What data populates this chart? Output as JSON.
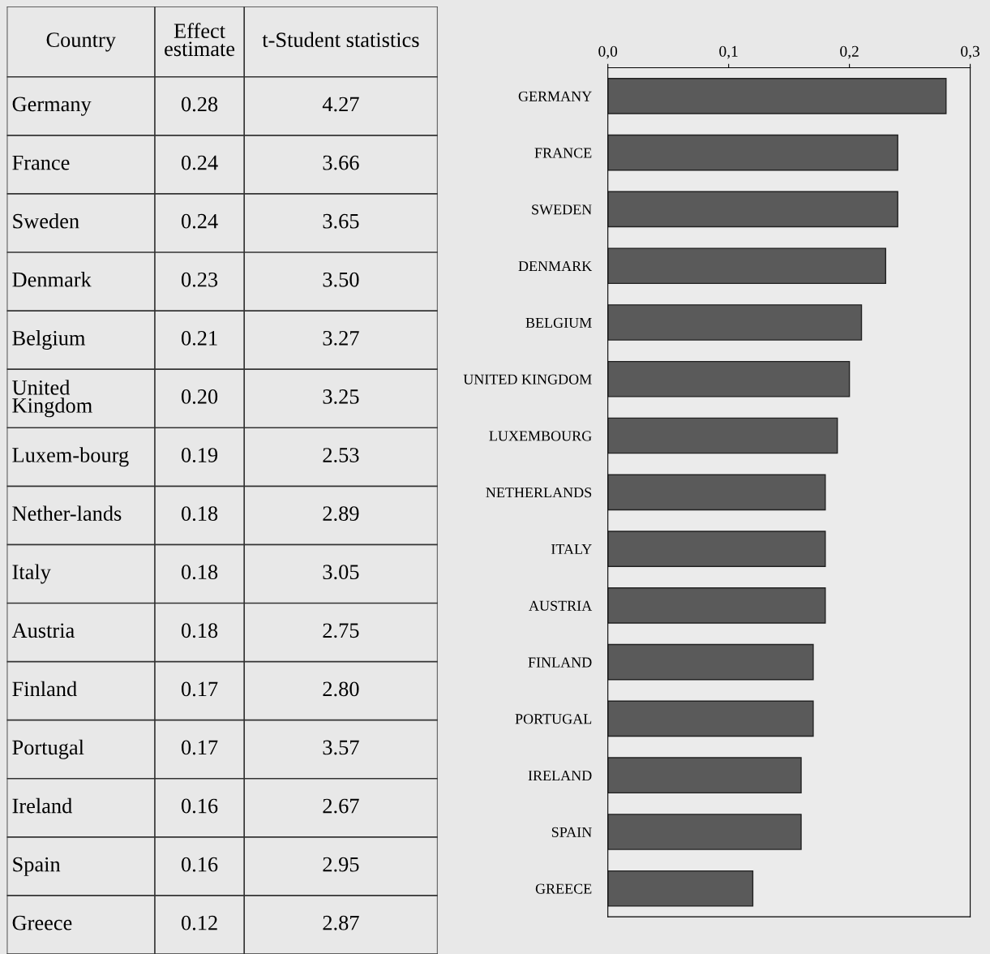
{
  "chart_data": [
    {
      "type": "other",
      "xlabel": "Country",
      "data_labels": true,
      "categories": [
        "Germany",
        "France",
        "Sweden",
        "Denmark",
        "Belgium",
        "United\nKingdom",
        "Luxem-bourg",
        "Nether-lands",
        "Italy",
        "Austria",
        "Finland",
        "Portugal",
        "Ireland",
        "Spain",
        "Greece"
      ],
      "series": [
        {
          "name": "Effect\nestimate",
          "values": [
            0.28,
            0.24,
            0.24,
            0.23,
            0.21,
            0.2,
            0.19,
            0.18,
            0.18,
            0.18,
            0.17,
            0.17,
            0.16,
            0.16,
            0.12
          ],
          "value_labels": [
            "0.28",
            "0.24",
            "0.24",
            "0.23",
            "0.21",
            "0.20",
            "0.19",
            "0.18",
            "0.18",
            "0.18",
            "0.17",
            "0.17",
            "0.16",
            "0.16",
            "0.12"
          ]
        },
        {
          "name": "t-Student statistics",
          "values": [
            4.27,
            3.66,
            3.65,
            3.5,
            3.27,
            3.25,
            2.53,
            2.89,
            3.05,
            2.75,
            2.8,
            3.57,
            2.67,
            2.95,
            2.87
          ],
          "value_labels": [
            "4.27",
            "3.66",
            "3.65",
            "3.50",
            "3.27",
            "3.25",
            "2.53",
            "2.89",
            "3.05",
            "2.75",
            "2.80",
            "3.57",
            "2.67",
            "2.95",
            "2.87"
          ]
        }
      ]
    },
    {
      "type": "bar",
      "orientation": "horizontal",
      "color": "#5a5a5a",
      "categories": [
        "GERMANY",
        "FRANCE",
        "SWEDEN",
        "DENMARK",
        "BELGIUM",
        "UNITED KINGDOM",
        "LUXEMBOURG",
        "NETHERLANDS",
        "ITALY",
        "AUSTRIA",
        "FINLAND",
        "PORTUGAL",
        "IRELAND",
        "SPAIN",
        "GREECE"
      ],
      "values": [
        0.28,
        0.24,
        0.24,
        0.23,
        0.21,
        0.2,
        0.19,
        0.18,
        0.18,
        0.18,
        0.17,
        0.17,
        0.16,
        0.16,
        0.12
      ],
      "xlim": [
        0,
        0.3
      ],
      "xticks": [
        {
          "value": 0,
          "label": "0,0"
        },
        {
          "value": 0.1,
          "label": "0,1"
        },
        {
          "value": 0.2,
          "label": "0,2"
        },
        {
          "value": 0.3,
          "label": "0,3"
        }
      ],
      "grid": false
    }
  ]
}
